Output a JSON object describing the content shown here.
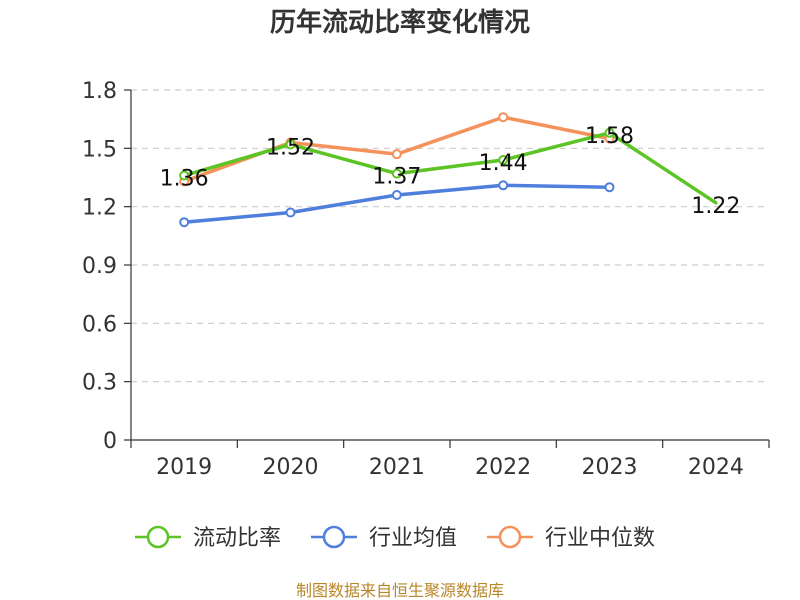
{
  "chart_data": {
    "type": "line",
    "title": "历年流动比率变化情况",
    "categories": [
      "2019",
      "2020",
      "2021",
      "2022",
      "2023",
      "2024"
    ],
    "y_ticks": [
      "0",
      "0.3",
      "0.6",
      "0.9",
      "1.2",
      "1.5",
      "1.8"
    ],
    "ylim": [
      0,
      1.8
    ],
    "grid": true,
    "legend_position": "bottom",
    "series": [
      {
        "key": "current",
        "name": "流动比率",
        "color": "#5cc424",
        "values": [
          1.36,
          1.52,
          1.37,
          1.44,
          1.58,
          1.22
        ],
        "labels": [
          "1.36",
          "1.52",
          "1.37",
          "1.44",
          "1.58",
          "1.22"
        ],
        "markers": [
          true,
          true,
          true,
          true,
          true,
          false
        ]
      },
      {
        "key": "industry_avg",
        "name": "行业均值",
        "color": "#4f7fdc",
        "values": [
          1.12,
          1.17,
          1.26,
          1.31,
          1.3,
          null
        ],
        "markers": [
          true,
          true,
          true,
          true,
          true,
          false
        ]
      },
      {
        "key": "industry_median",
        "name": "行业中位数",
        "color": "#f5915a",
        "values": [
          1.33,
          1.53,
          1.47,
          1.66,
          1.55,
          null
        ],
        "markers": [
          true,
          true,
          true,
          true,
          true,
          false
        ]
      }
    ],
    "source": "制图数据来自恒生聚源数据库"
  }
}
